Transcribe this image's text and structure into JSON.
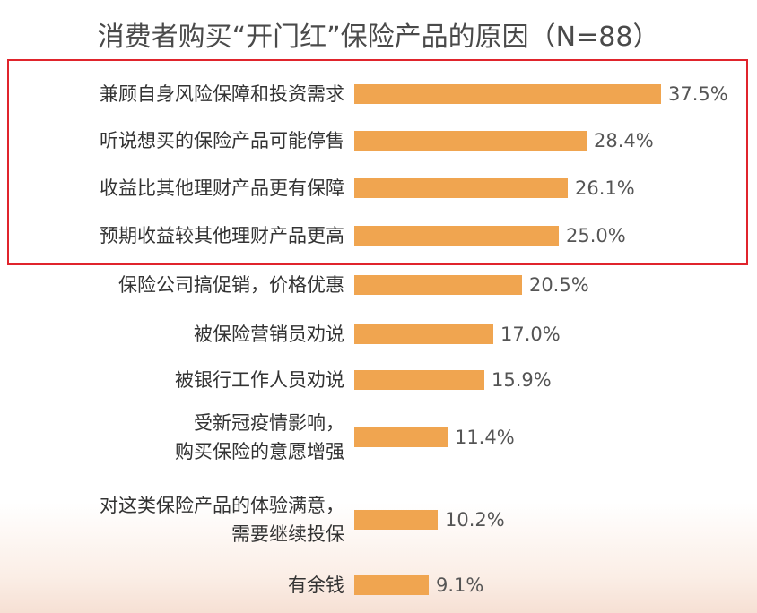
{
  "chart_data": {
    "type": "bar",
    "orientation": "horizontal",
    "title": "消费者购买“开门红”保险产品的原因（N=88）",
    "categories": [
      "兼顾自身风险保障和投资需求",
      "听说想买的保险产品可能停售",
      "收益比其他理财产品更有保障",
      "预期收益较其他理财产品更高",
      "保险公司搞促销，价格优惠",
      "被保险营销员劝说",
      "被银行工作人员劝说",
      "受新冠疫情影响，\n购买保险的意愿增强",
      "对这类保险产品的体验满意，\n需要继续投保",
      "有余钱"
    ],
    "values": [
      37.5,
      28.4,
      26.1,
      25.0,
      20.5,
      17.0,
      15.9,
      11.4,
      10.2,
      9.1
    ],
    "value_labels": [
      "37.5%",
      "28.4%",
      "26.1%",
      "25.0%",
      "20.5%",
      "17.0%",
      "15.9%",
      "11.4%",
      "10.2%",
      "9.1%"
    ],
    "color": "#f0a550"
  }
}
